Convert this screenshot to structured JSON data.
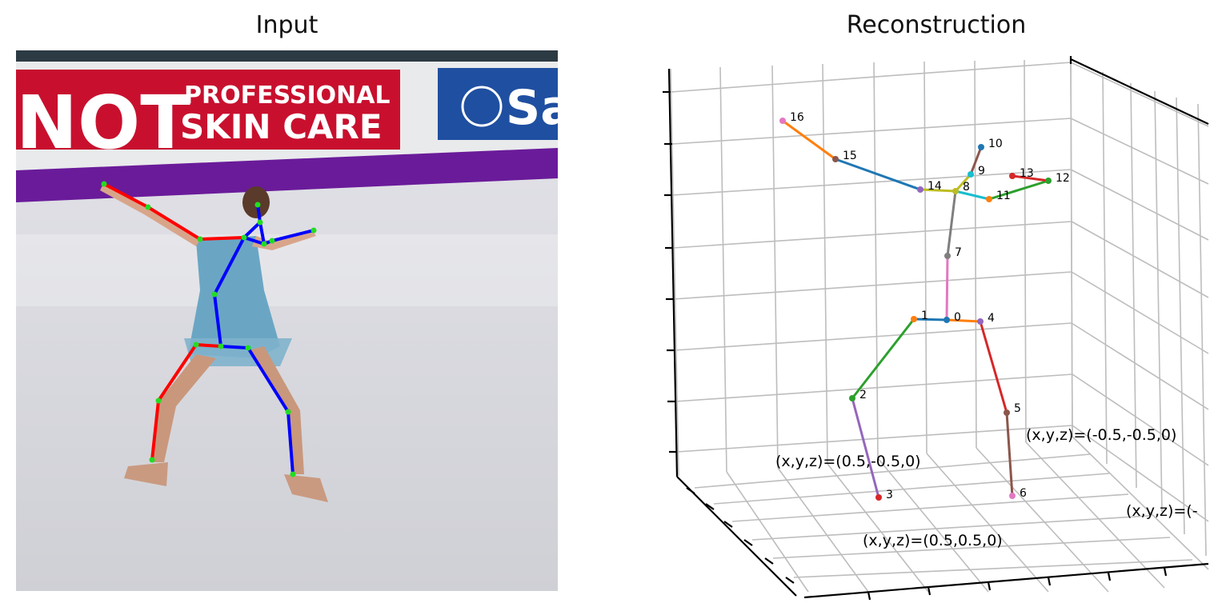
{
  "titles": {
    "left": "Input",
    "right": "Reconstruction"
  },
  "banner": {
    "line1_big": "NOT",
    "line1_small": "PROFESSIONAL",
    "line2_small": "SKIN CARE",
    "blue_sign": "Sa"
  },
  "joints": [
    {
      "id": "0",
      "label": "0"
    },
    {
      "id": "1",
      "label": "1"
    },
    {
      "id": "2",
      "label": "2"
    },
    {
      "id": "3",
      "label": "3"
    },
    {
      "id": "4",
      "label": "4"
    },
    {
      "id": "5",
      "label": "5"
    },
    {
      "id": "6",
      "label": "6"
    },
    {
      "id": "7",
      "label": "7"
    },
    {
      "id": "8",
      "label": "8"
    },
    {
      "id": "9",
      "label": "9"
    },
    {
      "id": "10",
      "label": "10"
    },
    {
      "id": "11",
      "label": "11"
    },
    {
      "id": "12",
      "label": "12"
    },
    {
      "id": "13",
      "label": "13"
    },
    {
      "id": "14",
      "label": "14"
    },
    {
      "id": "15",
      "label": "15"
    },
    {
      "id": "16",
      "label": "16"
    }
  ],
  "annotations": {
    "a": "(x,y,z)=(0.5,-0.5,0)",
    "b": "(x,y,z)=(-0.5,-0.5,0)",
    "c": "(x,y,z)=(0.5,0.5,0)",
    "d": "(x,y,z)=(-"
  },
  "colors": {
    "skeleton_red": "#ff0000",
    "skeleton_blue": "#0000ff",
    "keypoint_green": "#22dd22",
    "banner_red": "#c8102e",
    "banner_blue": "#1f4fa0",
    "banner_purple": "#6a1b9a"
  }
}
